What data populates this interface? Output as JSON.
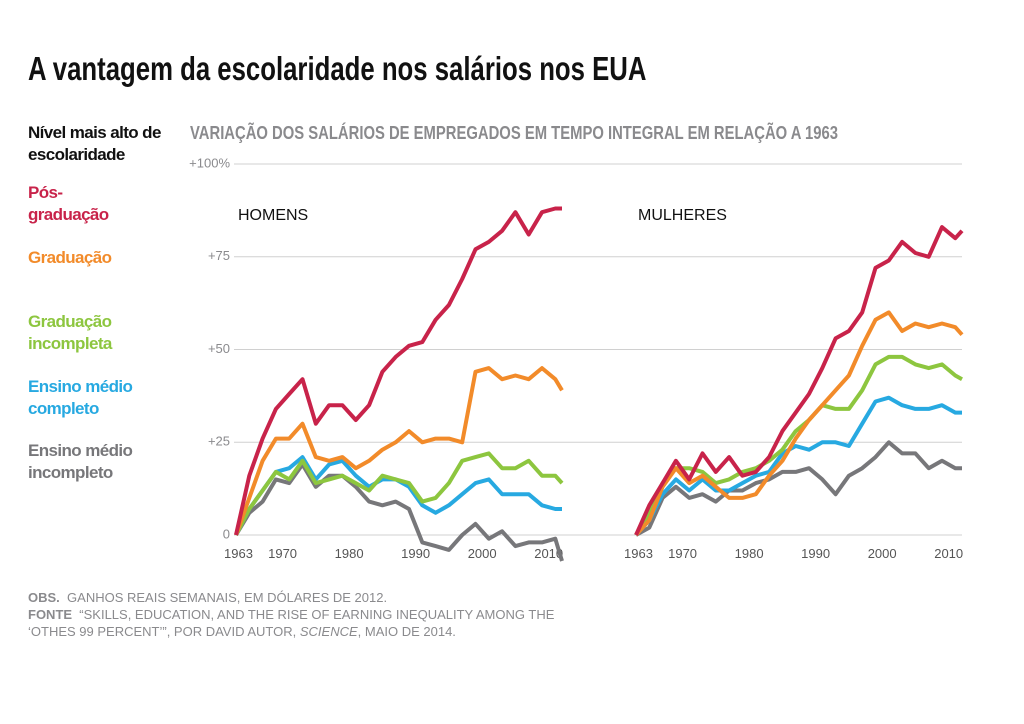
{
  "title": "A vantagem da escolaridade nos salários nos EUA",
  "subtitle": "VARIAÇÃO DOS SALÁRIOS DE EMPREGADOS EM TEMPO INTEGRAL EM RELAÇÃO A 1963",
  "legend_title": "Nível mais alto de escolaridade",
  "notes": {
    "obs_label": "OBS.",
    "obs": "GANHOS REAIS SEMANAIS, EM DÓLARES DE 2012.",
    "source_label": "FONTE",
    "source": "“SKILLS, EDUCATION, AND THE RISE OF EARNING INEQUALITY AMONG THE ‘OTHES 99 PERCENT’”, POR DAVID AUTOR, ",
    "source_journal": "SCIENCE",
    "source_end": ", MAIO DE 2014."
  },
  "chart_data": [
    {
      "type": "line",
      "title": "HOMENS",
      "x": [
        1963,
        1965,
        1967,
        1969,
        1971,
        1973,
        1975,
        1977,
        1979,
        1981,
        1983,
        1985,
        1987,
        1989,
        1991,
        1993,
        1995,
        1997,
        1999,
        2001,
        2003,
        2005,
        2007,
        2009,
        2011,
        2012
      ],
      "xlim": [
        1963,
        2012
      ],
      "xticks": [
        1963,
        1970,
        1980,
        1990,
        2000,
        2010
      ],
      "ylim": [
        -8,
        100
      ],
      "yticks": [
        0,
        {
          "value": 25,
          "label": "+25"
        },
        {
          "value": 50,
          "label": "+50"
        },
        {
          "value": 75,
          "label": "+75"
        },
        {
          "value": 100,
          "label": "+100%"
        }
      ],
      "grid": true,
      "series": [
        {
          "name": "Pós-graduação",
          "color": "#c8234a",
          "values": [
            0,
            16,
            26,
            34,
            38,
            42,
            30,
            35,
            35,
            31,
            35,
            44,
            48,
            51,
            52,
            58,
            62,
            69,
            77,
            79,
            82,
            87,
            81,
            87,
            88,
            88
          ]
        },
        {
          "name": "Graduação",
          "color": "#f28b2a",
          "values": [
            0,
            10,
            20,
            26,
            26,
            30,
            21,
            20,
            21,
            18,
            20,
            23,
            25,
            28,
            25,
            26,
            26,
            25,
            44,
            45,
            42,
            43,
            42,
            45,
            42,
            39
          ]
        },
        {
          "name": "Graduação incompleta",
          "color": "#8dc63f",
          "values": [
            0,
            7,
            12,
            17,
            15,
            20,
            14,
            15,
            16,
            14,
            12,
            16,
            15,
            14,
            9,
            10,
            14,
            20,
            21,
            22,
            18,
            18,
            20,
            16,
            16,
            14
          ]
        },
        {
          "name": "Ensino médio completo",
          "color": "#27a9e1",
          "values": [
            0,
            7,
            12,
            17,
            18,
            21,
            15,
            19,
            20,
            16,
            13,
            15,
            15,
            13,
            8,
            6,
            8,
            11,
            14,
            15,
            11,
            11,
            11,
            8,
            7,
            7
          ]
        },
        {
          "name": "Ensino médio incompleto",
          "color": "#77777a",
          "values": [
            0,
            6,
            9,
            15,
            14,
            19,
            13,
            16,
            16,
            13,
            9,
            8,
            9,
            7,
            -2,
            -3,
            -4,
            0,
            3,
            -1,
            1,
            -3,
            -2,
            -2,
            -1,
            -7
          ]
        }
      ]
    },
    {
      "type": "line",
      "title": "MULHERES",
      "x": [
        1963,
        1965,
        1967,
        1969,
        1971,
        1973,
        1975,
        1977,
        1979,
        1981,
        1983,
        1985,
        1987,
        1989,
        1991,
        1993,
        1995,
        1997,
        1999,
        2001,
        2003,
        2005,
        2007,
        2009,
        2011,
        2012
      ],
      "xlim": [
        1963,
        2012
      ],
      "xticks": [
        1963,
        1970,
        1980,
        1990,
        2000,
        2010
      ],
      "ylim": [
        -8,
        100
      ],
      "series": [
        {
          "name": "Pós-graduação",
          "color": "#c8234a",
          "values": [
            0,
            8,
            14,
            20,
            15,
            22,
            17,
            21,
            16,
            17,
            21,
            28,
            33,
            38,
            45,
            53,
            55,
            60,
            72,
            74,
            79,
            76,
            75,
            83,
            80,
            82
          ]
        },
        {
          "name": "Graduação",
          "color": "#f28b2a",
          "values": [
            0,
            4,
            13,
            18,
            14,
            16,
            13,
            10,
            10,
            11,
            16,
            20,
            26,
            31,
            35,
            39,
            43,
            51,
            58,
            60,
            55,
            57,
            56,
            57,
            56,
            54
          ]
        },
        {
          "name": "Graduação incompleta",
          "color": "#8dc63f",
          "values": [
            0,
            6,
            14,
            18,
            18,
            17,
            14,
            15,
            17,
            18,
            20,
            23,
            28,
            31,
            35,
            34,
            34,
            39,
            46,
            48,
            48,
            46,
            45,
            46,
            43,
            42
          ]
        },
        {
          "name": "Ensino médio completo",
          "color": "#27a9e1",
          "values": [
            0,
            4,
            11,
            15,
            12,
            15,
            12,
            12,
            14,
            16,
            17,
            22,
            24,
            23,
            25,
            25,
            24,
            30,
            36,
            37,
            35,
            34,
            34,
            35,
            33,
            33
          ]
        },
        {
          "name": "Ensino médio incompleto",
          "color": "#77777a",
          "values": [
            0,
            2,
            10,
            13,
            10,
            11,
            9,
            12,
            12,
            14,
            15,
            17,
            17,
            18,
            15,
            11,
            16,
            18,
            21,
            25,
            22,
            22,
            18,
            20,
            18,
            18
          ]
        }
      ]
    }
  ]
}
